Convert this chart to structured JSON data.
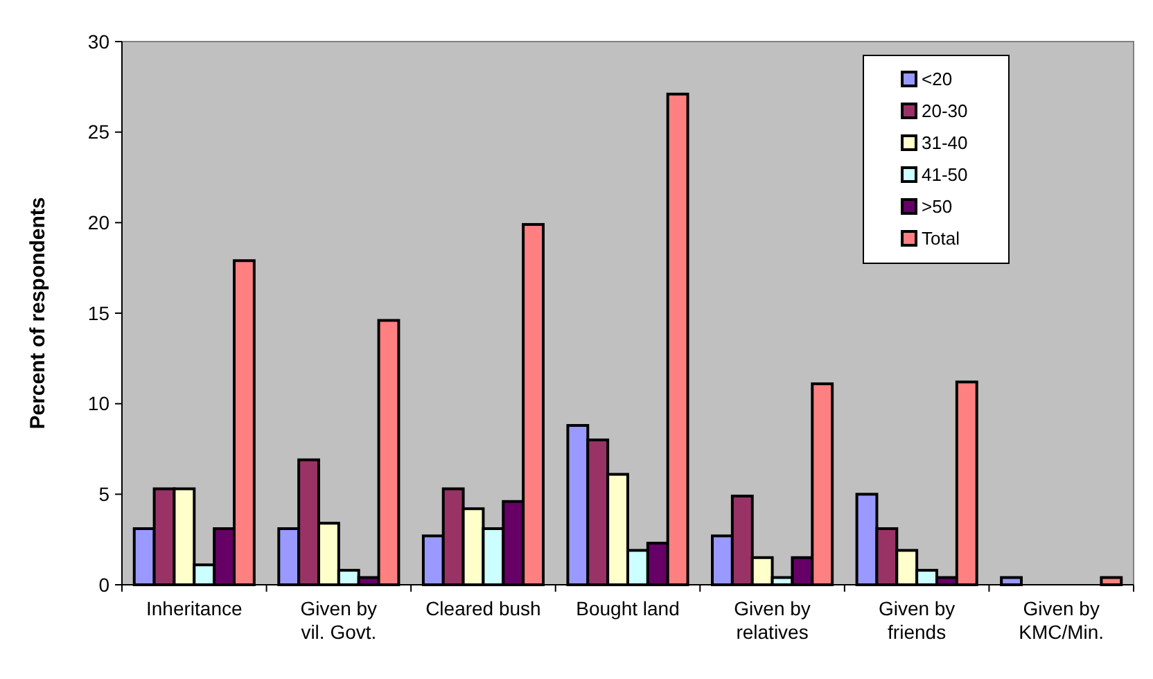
{
  "chart_data": {
    "type": "bar",
    "ylabel": "Percent of respondents",
    "categories": [
      "Inheritance",
      "Given by vil. Govt.",
      "Cleared bush",
      "Bought land",
      "Given by relatives",
      "Given by friends",
      "Given by KMC/Min."
    ],
    "series": [
      {
        "name": "<20",
        "color": "#9999ff",
        "values": [
          3.1,
          3.1,
          2.7,
          8.8,
          2.7,
          5.0,
          0.4
        ]
      },
      {
        "name": "20-30",
        "color": "#993366",
        "values": [
          5.3,
          6.9,
          5.3,
          8.0,
          4.9,
          3.1,
          0
        ]
      },
      {
        "name": "31-40",
        "color": "#ffffcc",
        "values": [
          5.3,
          3.4,
          4.2,
          6.1,
          1.5,
          1.9,
          0
        ]
      },
      {
        "name": "41-50",
        "color": "#ccffff",
        "values": [
          1.1,
          0.8,
          3.1,
          1.9,
          0.4,
          0.8,
          0
        ]
      },
      {
        "name": ">50",
        "color": "#660066",
        "values": [
          3.1,
          0.4,
          4.6,
          2.3,
          1.5,
          0.4,
          0
        ]
      },
      {
        "name": "Total",
        "color": "#ff8080",
        "values": [
          17.9,
          14.6,
          19.9,
          27.1,
          11.1,
          11.2,
          0.4
        ]
      }
    ],
    "ylim": [
      0,
      30
    ],
    "yticks": [
      0,
      5,
      10,
      15,
      20,
      25,
      30
    ],
    "grid": false,
    "legend": "top right"
  }
}
